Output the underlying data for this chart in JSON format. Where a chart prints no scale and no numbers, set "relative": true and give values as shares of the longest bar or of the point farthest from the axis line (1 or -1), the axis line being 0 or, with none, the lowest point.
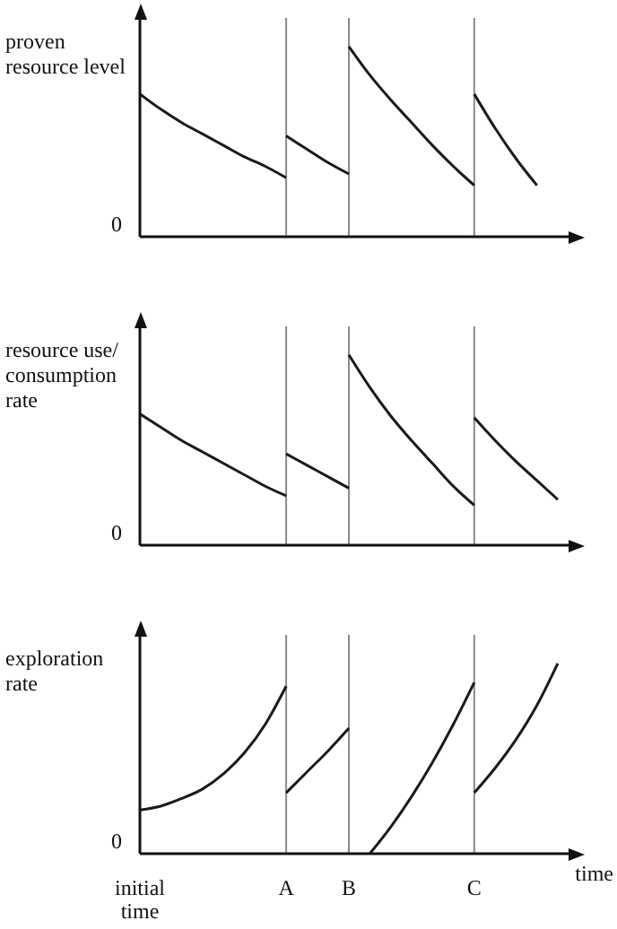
{
  "chart_data": [
    {
      "type": "line",
      "ylabel": "proven resource level",
      "relative": true,
      "categories": [
        "initial time",
        null,
        null,
        null,
        null,
        null,
        null,
        "A",
        null,
        null,
        "B",
        null,
        null,
        null,
        null,
        null,
        "C",
        null,
        null,
        null,
        null
      ],
      "tick_labels": false,
      "annotations": [
        "0"
      ],
      "marker": "none",
      "grid": false,
      "legend": false,
      "ref_lines": [
        {
          "axis": "x",
          "value": "A",
          "color": "#8a8a8a"
        },
        {
          "axis": "x",
          "value": "B",
          "color": "#8a8a8a"
        },
        {
          "axis": "x",
          "value": "C",
          "color": "#8a8a8a"
        }
      ],
      "series": [
        {
          "color": "#1a1a1a",
          "values": [
            0.75,
            0.67,
            0.6,
            0.54,
            0.48,
            0.42,
            0.37,
            0.31,
            null,
            null,
            null,
            null,
            null,
            null,
            null,
            null,
            null,
            null,
            null,
            null,
            null
          ]
        },
        {
          "color": "#1a1a1a",
          "values": [
            null,
            null,
            null,
            null,
            null,
            null,
            null,
            0.53,
            0.46,
            0.39,
            0.33,
            null,
            null,
            null,
            null,
            null,
            null,
            null,
            null,
            null,
            null
          ]
        },
        {
          "color": "#1a1a1a",
          "values": [
            null,
            null,
            null,
            null,
            null,
            null,
            null,
            null,
            null,
            null,
            1,
            0.85,
            0.72,
            0.6,
            0.48,
            0.37,
            0.27,
            null,
            null,
            null,
            null
          ]
        },
        {
          "color": "#1a1a1a",
          "values": [
            null,
            null,
            null,
            null,
            null,
            null,
            null,
            null,
            null,
            null,
            null,
            null,
            null,
            null,
            null,
            null,
            0.75,
            0.57,
            0.41,
            0.27,
            null
          ]
        }
      ]
    },
    {
      "type": "line",
      "ylabel": "resource use/ consumption rate",
      "relative": true,
      "categories": [
        "initial time",
        null,
        null,
        null,
        null,
        null,
        null,
        "A",
        null,
        null,
        "B",
        null,
        null,
        null,
        null,
        null,
        "C",
        null,
        null,
        null,
        null
      ],
      "tick_labels": false,
      "annotations": [
        "0"
      ],
      "marker": "none",
      "grid": false,
      "legend": false,
      "ref_lines": [
        {
          "axis": "x",
          "value": "A",
          "color": "#8a8a8a"
        },
        {
          "axis": "x",
          "value": "B",
          "color": "#8a8a8a"
        },
        {
          "axis": "x",
          "value": "C",
          "color": "#8a8a8a"
        }
      ],
      "series": [
        {
          "color": "#1a1a1a",
          "values": [
            0.69,
            0.62,
            0.55,
            0.49,
            0.43,
            0.37,
            0.31,
            0.26,
            null,
            null,
            null,
            null,
            null,
            null,
            null,
            null,
            null,
            null,
            null,
            null,
            null
          ]
        },
        {
          "color": "#1a1a1a",
          "values": [
            null,
            null,
            null,
            null,
            null,
            null,
            null,
            0.48,
            0.42,
            0.36,
            0.3,
            null,
            null,
            null,
            null,
            null,
            null,
            null,
            null,
            null,
            null
          ]
        },
        {
          "color": "#1a1a1a",
          "values": [
            null,
            null,
            null,
            null,
            null,
            null,
            null,
            null,
            null,
            null,
            1,
            0.83,
            0.68,
            0.55,
            0.43,
            0.31,
            0.21,
            null,
            null,
            null,
            null
          ]
        },
        {
          "color": "#1a1a1a",
          "values": [
            null,
            null,
            null,
            null,
            null,
            null,
            null,
            null,
            null,
            null,
            null,
            null,
            null,
            null,
            null,
            null,
            0.67,
            0.55,
            0.44,
            0.34,
            0.24
          ]
        }
      ]
    },
    {
      "type": "line",
      "ylabel": "exploration rate",
      "xlabel": "time",
      "relative": true,
      "categories": [
        "initial time",
        null,
        null,
        null,
        null,
        null,
        null,
        "A",
        null,
        null,
        "B",
        null,
        null,
        null,
        null,
        null,
        "C",
        null,
        null,
        null,
        null
      ],
      "tick_labels": "x",
      "annotations": [
        "0"
      ],
      "marker": "none",
      "grid": false,
      "legend": false,
      "ref_lines": [
        {
          "axis": "x",
          "value": "A",
          "color": "#8a8a8a"
        },
        {
          "axis": "x",
          "value": "B",
          "color": "#8a8a8a"
        },
        {
          "axis": "x",
          "value": "C",
          "color": "#8a8a8a"
        }
      ],
      "series": [
        {
          "color": "#1a1a1a",
          "values": [
            0.23,
            0.25,
            0.29,
            0.34,
            0.42,
            0.53,
            0.68,
            0.88,
            null,
            null,
            null,
            null,
            null,
            null,
            null,
            null,
            null,
            null,
            null,
            null,
            null
          ]
        },
        {
          "color": "#1a1a1a",
          "values": [
            null,
            null,
            null,
            null,
            null,
            null,
            null,
            0.32,
            0.43,
            0.54,
            0.66,
            null,
            null,
            null,
            null,
            null,
            null,
            null,
            null,
            null,
            null
          ]
        },
        {
          "color": "#1a1a1a",
          "values": [
            null,
            null,
            null,
            null,
            null,
            null,
            null,
            null,
            null,
            null,
            null,
            0,
            0.14,
            0.3,
            0.48,
            0.68,
            0.9,
            null,
            null,
            null,
            null
          ]
        },
        {
          "color": "#1a1a1a",
          "values": [
            null,
            null,
            null,
            null,
            null,
            null,
            null,
            null,
            null,
            null,
            null,
            null,
            null,
            null,
            null,
            null,
            0.32,
            0.45,
            0.6,
            0.78,
            1
          ]
        }
      ]
    }
  ]
}
